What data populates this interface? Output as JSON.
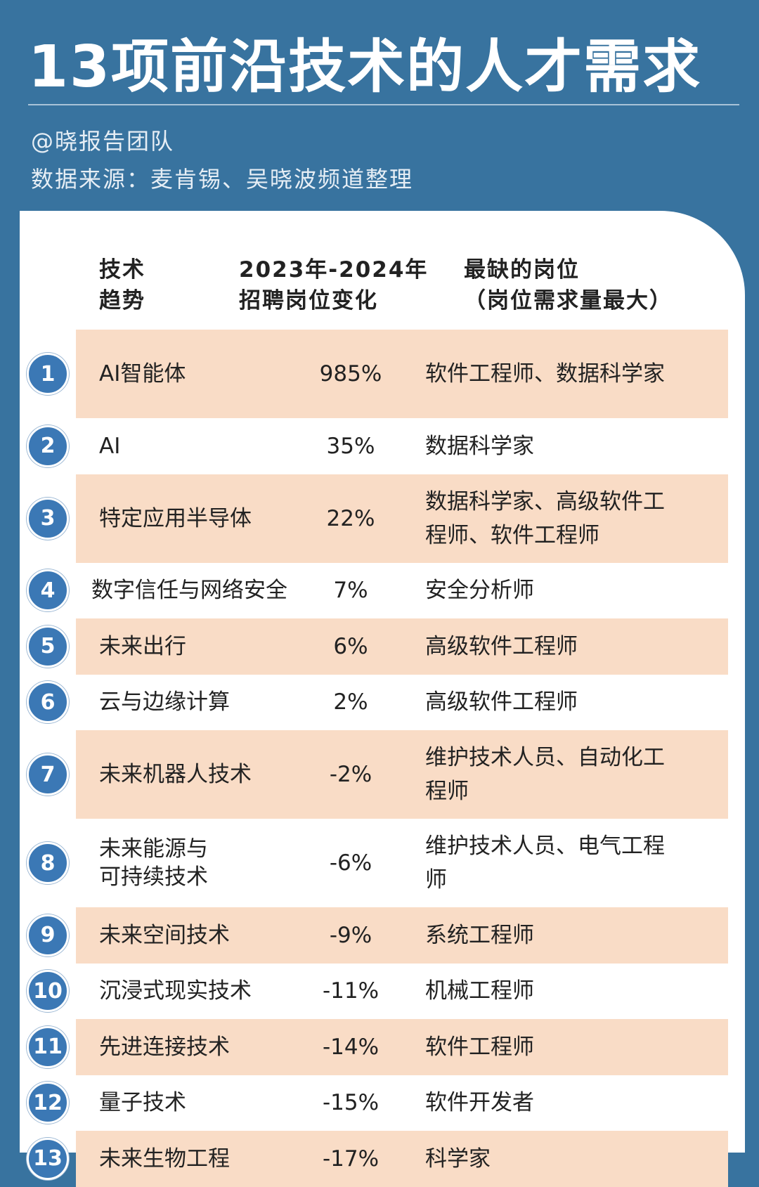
{
  "header": {
    "title": "13项前沿技术的人才需求",
    "author": "@晓报告团队",
    "source": "数据来源：麦肯锡、吴晓波频道整理"
  },
  "table": {
    "columns": [
      [
        "技术",
        "趋势"
      ],
      [
        "2023年-2024年",
        "招聘岗位变化"
      ],
      [
        "最缺的岗位",
        "（岗位需求量最大）"
      ]
    ],
    "rows": [
      {
        "rank": 1,
        "tech": [
          "AI智能体"
        ],
        "change": "985%",
        "job": "软件工程师、数据科学家"
      },
      {
        "rank": 2,
        "tech": [
          "AI"
        ],
        "change": "35%",
        "job": "数据科学家"
      },
      {
        "rank": 3,
        "tech": [
          "特定应用半导体"
        ],
        "change": "22%",
        "job": "数据科学家、高级软件工程师、软件工程师"
      },
      {
        "rank": 4,
        "tech": [
          "数字信任与网络安全"
        ],
        "change": "7%",
        "job": "安全分析师"
      },
      {
        "rank": 5,
        "tech": [
          "未来出行"
        ],
        "change": "6%",
        "job": "高级软件工程师"
      },
      {
        "rank": 6,
        "tech": [
          "云与边缘计算"
        ],
        "change": "2%",
        "job": "高级软件工程师"
      },
      {
        "rank": 7,
        "tech": [
          "未来机器人技术"
        ],
        "change": "-2%",
        "job": "维护技术人员、自动化工程师"
      },
      {
        "rank": 8,
        "tech": [
          "未来能源与",
          "可持续技术"
        ],
        "change": "-6%",
        "job": "维护技术人员、电气工程师"
      },
      {
        "rank": 9,
        "tech": [
          "未来空间技术"
        ],
        "change": "-9%",
        "job": "系统工程师"
      },
      {
        "rank": 10,
        "tech": [
          "沉浸式现实技术"
        ],
        "change": "-11%",
        "job": "机械工程师"
      },
      {
        "rank": 11,
        "tech": [
          "先进连接技术"
        ],
        "change": "-14%",
        "job": "软件工程师"
      },
      {
        "rank": 12,
        "tech": [
          "量子技术"
        ],
        "change": "-15%",
        "job": "软件开发者"
      },
      {
        "rank": 13,
        "tech": [
          "未来生物工程"
        ],
        "change": "-17%",
        "job": "科学家"
      }
    ]
  }
}
